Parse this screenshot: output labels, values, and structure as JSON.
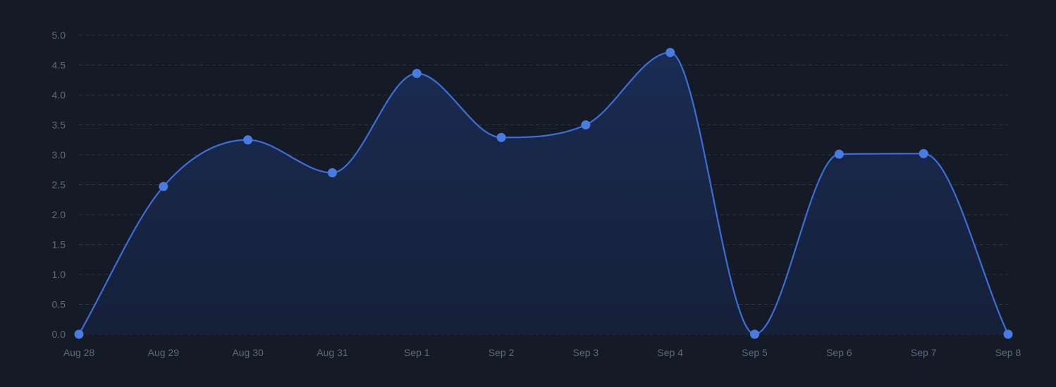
{
  "chart_data": {
    "type": "area",
    "title": "",
    "xlabel": "",
    "ylabel": "",
    "categories": [
      "Aug 28",
      "Aug 29",
      "Aug 30",
      "Aug 31",
      "Sep 1",
      "Sep 2",
      "Sep 3",
      "Sep 4",
      "Sep 5",
      "Sep 6",
      "Sep 7",
      "Sep 8"
    ],
    "series": [
      {
        "values": [
          0,
          2.47,
          3.25,
          2.7,
          4.36,
          3.29,
          3.5,
          4.71,
          0,
          3.01,
          3.02,
          0
        ]
      }
    ],
    "ylim": [
      0,
      5
    ],
    "yticks": [
      "0.0",
      "0.5",
      "1.0",
      "1.5",
      "2.0",
      "2.5",
      "3.0",
      "3.5",
      "4.0",
      "4.5",
      "5.0"
    ],
    "grid": true,
    "curve": "smooth",
    "colors": {
      "background": "#141b27",
      "line": "#3b6fd6",
      "point": "#4a7be0",
      "fill_top": "#1a2d56",
      "fill_bottom": "#16203a",
      "grid": "#2c3645",
      "tick_text": "#5f6a7d"
    }
  }
}
